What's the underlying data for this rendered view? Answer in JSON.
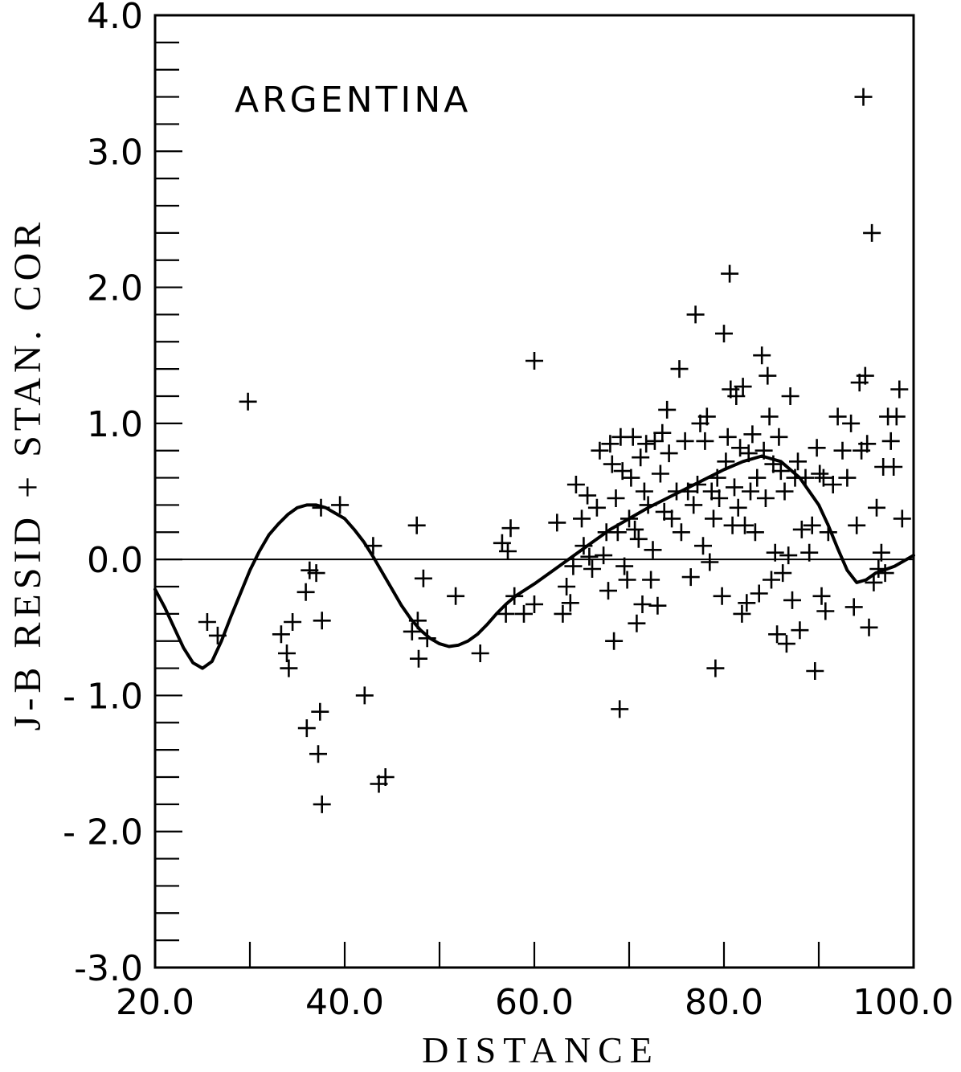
{
  "chart_data": {
    "type": "scatter",
    "title": "",
    "annotation": "ARGENTINA",
    "xlabel": "DISTANCE",
    "ylabel": "J-B RESID + STAN. COR",
    "xlim": [
      20,
      100
    ],
    "ylim": [
      -3,
      4
    ],
    "x_ticks": [
      20,
      30,
      40,
      50,
      60,
      70,
      80,
      90,
      100
    ],
    "x_tick_labels": [
      "20.0",
      "40.0",
      "60.0",
      "80.0",
      "100.0"
    ],
    "x_tick_label_values": [
      20,
      40,
      60,
      80,
      100
    ],
    "y_tick_labels": [
      "4.0",
      "3.0",
      "2.0",
      "1.0",
      "0.0",
      "- 1.0",
      "- 2.0",
      "-3.0"
    ],
    "y_tick_label_values": [
      4,
      3,
      2,
      1,
      0,
      -1,
      -2,
      -3
    ],
    "y_minor_step": 0.2,
    "zero_line": 0,
    "grid": false,
    "series": [
      {
        "type": "scatter",
        "marker": "plus",
        "points": [
          [
            25.5,
            -0.46
          ],
          [
            26.6,
            -0.56
          ],
          [
            29.8,
            1.16
          ],
          [
            33.3,
            -0.55
          ],
          [
            33.9,
            -0.69
          ],
          [
            34.1,
            -0.8
          ],
          [
            34.5,
            -0.46
          ],
          [
            35.9,
            -0.24
          ],
          [
            36.3,
            -0.08
          ],
          [
            36.0,
            -1.24
          ],
          [
            37.0,
            -0.1
          ],
          [
            37.4,
            -1.12
          ],
          [
            37.5,
            0.38
          ],
          [
            37.6,
            -0.45
          ],
          [
            37.2,
            -1.43
          ],
          [
            37.6,
            -1.8
          ],
          [
            39.5,
            0.4
          ],
          [
            42.1,
            -1.0
          ],
          [
            43.0,
            0.1
          ],
          [
            43.6,
            -1.65
          ],
          [
            44.3,
            -1.6
          ],
          [
            47.1,
            -0.53
          ],
          [
            47.6,
            0.25
          ],
          [
            47.7,
            -0.45
          ],
          [
            47.8,
            -0.73
          ],
          [
            48.3,
            -0.14
          ],
          [
            48.7,
            -0.58
          ],
          [
            51.7,
            -0.27
          ],
          [
            54.3,
            -0.69
          ],
          [
            56.6,
            0.12
          ],
          [
            57.0,
            -0.4
          ],
          [
            57.2,
            0.06
          ],
          [
            57.5,
            0.23
          ],
          [
            57.9,
            -0.27
          ],
          [
            58.9,
            -0.4
          ],
          [
            60.0,
            1.46
          ],
          [
            60.0,
            -0.33
          ],
          [
            62.4,
            0.27
          ],
          [
            63.0,
            -0.4
          ],
          [
            63.4,
            -0.2
          ],
          [
            63.8,
            -0.32
          ],
          [
            64.1,
            -0.05
          ],
          [
            64.4,
            0.55
          ],
          [
            65.0,
            0.3
          ],
          [
            65.2,
            0.1
          ],
          [
            65.6,
            0.47
          ],
          [
            65.8,
            0.02
          ],
          [
            66.1,
            -0.07
          ],
          [
            66.6,
            0.38
          ],
          [
            66.9,
            0.8
          ],
          [
            67.3,
            0.03
          ],
          [
            67.6,
            0.2
          ],
          [
            67.8,
            -0.23
          ],
          [
            68.0,
            0.85
          ],
          [
            68.2,
            0.7
          ],
          [
            68.4,
            -0.6
          ],
          [
            68.6,
            0.45
          ],
          [
            68.8,
            0.2
          ],
          [
            69.0,
            -1.1
          ],
          [
            69.1,
            0.9
          ],
          [
            69.3,
            0.65
          ],
          [
            69.5,
            -0.05
          ],
          [
            69.8,
            -0.15
          ],
          [
            70.0,
            0.3
          ],
          [
            70.2,
            0.6
          ],
          [
            70.4,
            0.9
          ],
          [
            70.6,
            0.22
          ],
          [
            70.8,
            -0.47
          ],
          [
            71.0,
            0.15
          ],
          [
            71.2,
            0.75
          ],
          [
            71.4,
            -0.33
          ],
          [
            71.6,
            0.5
          ],
          [
            71.8,
            0.85
          ],
          [
            72.0,
            0.4
          ],
          [
            72.3,
            -0.15
          ],
          [
            72.5,
            0.07
          ],
          [
            72.7,
            0.87
          ],
          [
            73.0,
            -0.34
          ],
          [
            73.3,
            0.63
          ],
          [
            73.5,
            0.93
          ],
          [
            73.7,
            0.35
          ],
          [
            74.0,
            1.1
          ],
          [
            74.2,
            0.78
          ],
          [
            74.5,
            0.3
          ],
          [
            75.0,
            0.5
          ],
          [
            75.3,
            1.4
          ],
          [
            75.5,
            0.2
          ],
          [
            75.9,
            0.87
          ],
          [
            76.2,
            0.5
          ],
          [
            76.5,
            -0.13
          ],
          [
            76.8,
            0.4
          ],
          [
            77.0,
            1.8
          ],
          [
            77.2,
            0.55
          ],
          [
            77.5,
            1.0
          ],
          [
            77.8,
            0.1
          ],
          [
            78.0,
            0.87
          ],
          [
            78.2,
            1.05
          ],
          [
            78.5,
            -0.02
          ],
          [
            78.7,
            0.5
          ],
          [
            78.9,
            0.3
          ],
          [
            79.1,
            -0.8
          ],
          [
            79.3,
            0.6
          ],
          [
            79.5,
            0.45
          ],
          [
            79.8,
            -0.27
          ],
          [
            80.0,
            1.66
          ],
          [
            80.2,
            0.72
          ],
          [
            80.4,
            0.9
          ],
          [
            80.6,
            2.1
          ],
          [
            80.7,
            1.25
          ],
          [
            80.9,
            0.25
          ],
          [
            81.1,
            0.53
          ],
          [
            81.3,
            1.2
          ],
          [
            81.5,
            0.38
          ],
          [
            81.7,
            0.82
          ],
          [
            81.9,
            -0.4
          ],
          [
            82.0,
            1.27
          ],
          [
            82.2,
            0.25
          ],
          [
            82.4,
            -0.32
          ],
          [
            82.6,
            0.78
          ],
          [
            82.8,
            0.5
          ],
          [
            83.0,
            0.92
          ],
          [
            83.3,
            0.2
          ],
          [
            83.5,
            0.6
          ],
          [
            83.7,
            -0.25
          ],
          [
            84.0,
            1.5
          ],
          [
            84.2,
            0.8
          ],
          [
            84.4,
            0.45
          ],
          [
            84.6,
            1.35
          ],
          [
            84.8,
            1.05
          ],
          [
            85.0,
            -0.15
          ],
          [
            85.2,
            0.7
          ],
          [
            85.4,
            0.05
          ],
          [
            85.6,
            -0.55
          ],
          [
            85.8,
            0.9
          ],
          [
            86.0,
            0.65
          ],
          [
            86.2,
            -0.1
          ],
          [
            86.4,
            0.5
          ],
          [
            86.6,
            -0.62
          ],
          [
            86.8,
            0.03
          ],
          [
            87.0,
            1.2
          ],
          [
            87.2,
            -0.3
          ],
          [
            87.5,
            0.6
          ],
          [
            87.8,
            0.72
          ],
          [
            88.0,
            -0.52
          ],
          [
            88.2,
            0.22
          ],
          [
            88.6,
            0.6
          ],
          [
            89.0,
            0.05
          ],
          [
            89.3,
            0.25
          ],
          [
            89.6,
            -0.82
          ],
          [
            89.8,
            0.82
          ],
          [
            90.1,
            0.63
          ],
          [
            90.3,
            -0.27
          ],
          [
            90.5,
            0.6
          ],
          [
            90.7,
            -0.38
          ],
          [
            91.0,
            0.2
          ],
          [
            91.5,
            0.55
          ],
          [
            92.0,
            1.05
          ],
          [
            92.5,
            0.8
          ],
          [
            93.0,
            0.6
          ],
          [
            93.4,
            1.0
          ],
          [
            93.7,
            -0.35
          ],
          [
            94.0,
            0.25
          ],
          [
            94.3,
            1.3
          ],
          [
            94.5,
            0.8
          ],
          [
            94.7,
            3.4
          ],
          [
            94.9,
            1.35
          ],
          [
            95.1,
            0.85
          ],
          [
            95.3,
            -0.5
          ],
          [
            95.6,
            2.4
          ],
          [
            95.8,
            -0.17
          ],
          [
            96.1,
            0.38
          ],
          [
            96.3,
            -0.07
          ],
          [
            96.6,
            0.05
          ],
          [
            96.8,
            0.68
          ],
          [
            97.0,
            -0.1
          ],
          [
            97.3,
            1.05
          ],
          [
            97.6,
            0.87
          ],
          [
            97.9,
            0.68
          ],
          [
            98.2,
            1.05
          ],
          [
            98.5,
            1.25
          ],
          [
            98.8,
            0.3
          ]
        ]
      },
      {
        "type": "line",
        "style": "solid-curve",
        "points": [
          [
            20.0,
            -0.22
          ],
          [
            21.0,
            -0.35
          ],
          [
            22.0,
            -0.5
          ],
          [
            23.0,
            -0.65
          ],
          [
            24.0,
            -0.76
          ],
          [
            25.0,
            -0.8
          ],
          [
            26.0,
            -0.75
          ],
          [
            27.0,
            -0.6
          ],
          [
            28.0,
            -0.42
          ],
          [
            29.0,
            -0.25
          ],
          [
            30.0,
            -0.08
          ],
          [
            31.0,
            0.06
          ],
          [
            32.0,
            0.18
          ],
          [
            33.0,
            0.26
          ],
          [
            34.0,
            0.33
          ],
          [
            35.0,
            0.38
          ],
          [
            36.0,
            0.4
          ],
          [
            37.0,
            0.4
          ],
          [
            38.0,
            0.38
          ],
          [
            39.0,
            0.34
          ],
          [
            40.0,
            0.3
          ],
          [
            41.0,
            0.22
          ],
          [
            42.0,
            0.13
          ],
          [
            43.0,
            0.02
          ],
          [
            44.0,
            -0.1
          ],
          [
            45.0,
            -0.22
          ],
          [
            46.0,
            -0.34
          ],
          [
            47.0,
            -0.44
          ],
          [
            48.0,
            -0.52
          ],
          [
            49.0,
            -0.58
          ],
          [
            50.0,
            -0.62
          ],
          [
            51.0,
            -0.64
          ],
          [
            52.0,
            -0.63
          ],
          [
            53.0,
            -0.6
          ],
          [
            54.0,
            -0.55
          ],
          [
            55.0,
            -0.48
          ],
          [
            56.0,
            -0.4
          ],
          [
            57.0,
            -0.33
          ],
          [
            58.0,
            -0.27
          ],
          [
            60.0,
            -0.18
          ],
          [
            62.0,
            -0.08
          ],
          [
            64.0,
            0.02
          ],
          [
            66.0,
            0.12
          ],
          [
            68.0,
            0.22
          ],
          [
            70.0,
            0.3
          ],
          [
            72.0,
            0.38
          ],
          [
            74.0,
            0.45
          ],
          [
            76.0,
            0.52
          ],
          [
            78.0,
            0.59
          ],
          [
            80.0,
            0.66
          ],
          [
            82.0,
            0.72
          ],
          [
            84.0,
            0.76
          ],
          [
            86.0,
            0.72
          ],
          [
            88.0,
            0.6
          ],
          [
            90.0,
            0.4
          ],
          [
            91.0,
            0.25
          ],
          [
            92.0,
            0.08
          ],
          [
            93.0,
            -0.08
          ],
          [
            94.0,
            -0.17
          ],
          [
            95.0,
            -0.15
          ],
          [
            96.0,
            -0.1
          ],
          [
            98.0,
            -0.05
          ],
          [
            100.0,
            0.03
          ]
        ]
      }
    ]
  }
}
